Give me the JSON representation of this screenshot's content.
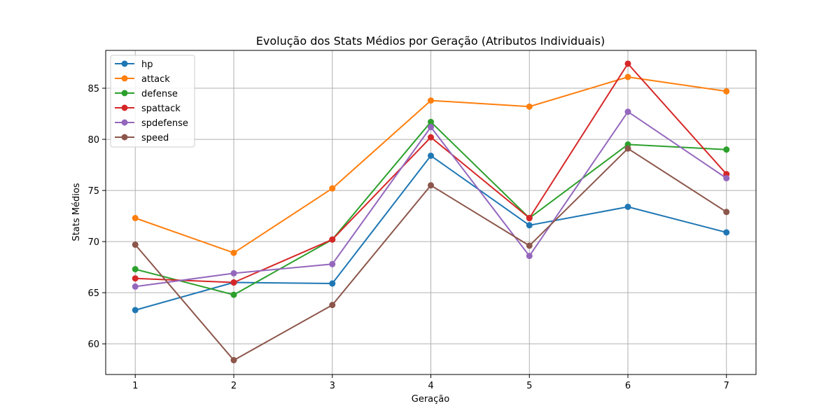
{
  "chart_data": {
    "type": "line",
    "title": "Evolução dos Stats Médios por Geração (Atributos Individuais)",
    "xlabel": "Geração",
    "ylabel": "Stats Médios",
    "x": [
      1,
      2,
      3,
      4,
      5,
      6,
      7
    ],
    "x_ticks": [
      "1",
      "2",
      "3",
      "4",
      "5",
      "6",
      "7"
    ],
    "y_ticks": [
      "60",
      "65",
      "70",
      "75",
      "80",
      "85"
    ],
    "xlim": [
      0.7,
      7.3
    ],
    "ylim": [
      57.0,
      88.7
    ],
    "grid": true,
    "legend_position": "top-left",
    "series": [
      {
        "name": "hp",
        "color": "#1f77b4",
        "values": [
          63.3,
          66.0,
          65.9,
          78.4,
          71.6,
          73.4,
          70.9
        ]
      },
      {
        "name": "attack",
        "color": "#ff7f0e",
        "values": [
          72.3,
          68.9,
          75.2,
          83.8,
          83.2,
          86.1,
          84.7
        ]
      },
      {
        "name": "defense",
        "color": "#2ca02c",
        "values": [
          67.3,
          64.8,
          70.2,
          81.7,
          72.3,
          79.5,
          79.0
        ]
      },
      {
        "name": "spattack",
        "color": "#d62728",
        "values": [
          66.4,
          66.0,
          70.2,
          80.2,
          72.3,
          87.4,
          76.6
        ]
      },
      {
        "name": "spdefense",
        "color": "#9467bd",
        "values": [
          65.6,
          66.9,
          67.8,
          81.2,
          68.6,
          82.7,
          76.2
        ]
      },
      {
        "name": "speed",
        "color": "#8c564b",
        "values": [
          69.7,
          58.4,
          63.8,
          75.5,
          69.6,
          79.1,
          72.9
        ]
      }
    ]
  }
}
